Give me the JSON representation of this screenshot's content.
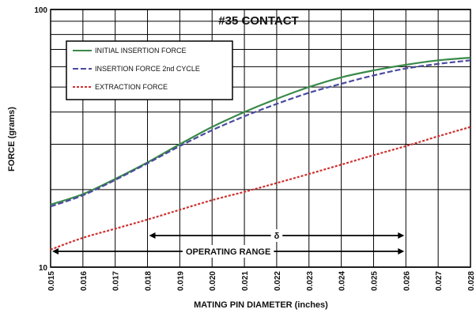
{
  "chart_data": {
    "type": "line",
    "title": "#35 CONTACT",
    "xlabel": "MATING PIN DIAMETER (inches)",
    "ylabel": "FORCE (grams)",
    "xlim": [
      0.015,
      0.028
    ],
    "ylim": [
      10,
      100
    ],
    "y_scale": "log",
    "grid": true,
    "legend_position": "top-left",
    "x_ticks": [
      "0.015",
      "0.016",
      "0.017",
      "0.018",
      "0.019",
      "0.020",
      "0.021",
      "0.022",
      "0.023",
      "0.024",
      "0.025",
      "0.026",
      "0.027",
      "0.028"
    ],
    "y_ticks": [
      "10",
      "100"
    ],
    "x": [
      0.015,
      0.016,
      0.017,
      0.018,
      0.019,
      0.02,
      0.021,
      0.022,
      0.023,
      0.024,
      0.025,
      0.026,
      0.027,
      0.028
    ],
    "series": [
      {
        "name": "INITIAL INSERTION FORCE",
        "color": "#3a8a4a",
        "dash": "solid",
        "values": [
          17.5,
          19.2,
          22.0,
          25.5,
          30.0,
          35.0,
          40.0,
          45.0,
          50.0,
          54.5,
          58.0,
          61.0,
          63.5,
          65.0
        ]
      },
      {
        "name": "INSERTION FORCE 2nd CYCLE",
        "color": "#4a4aa0",
        "dash": "dashed",
        "values": [
          17.2,
          19.0,
          21.8,
          25.3,
          29.5,
          34.0,
          38.5,
          43.0,
          47.5,
          51.5,
          55.5,
          59.0,
          61.5,
          63.5
        ]
      },
      {
        "name": "EXTRACTION FORCE",
        "color": "#d03030",
        "dash": "dotted",
        "values": [
          11.7,
          13.0,
          14.1,
          15.3,
          16.7,
          18.2,
          19.6,
          21.2,
          23.0,
          25.0,
          27.2,
          29.5,
          32.2,
          35.0
        ]
      }
    ],
    "annotations": [
      {
        "text": "δ",
        "from": 0.018,
        "to": 0.026
      },
      {
        "text": "OPERATING RANGE",
        "from": 0.015,
        "to": 0.026
      }
    ]
  },
  "colors": {
    "grid": "#000000",
    "background": "#ffffff"
  }
}
